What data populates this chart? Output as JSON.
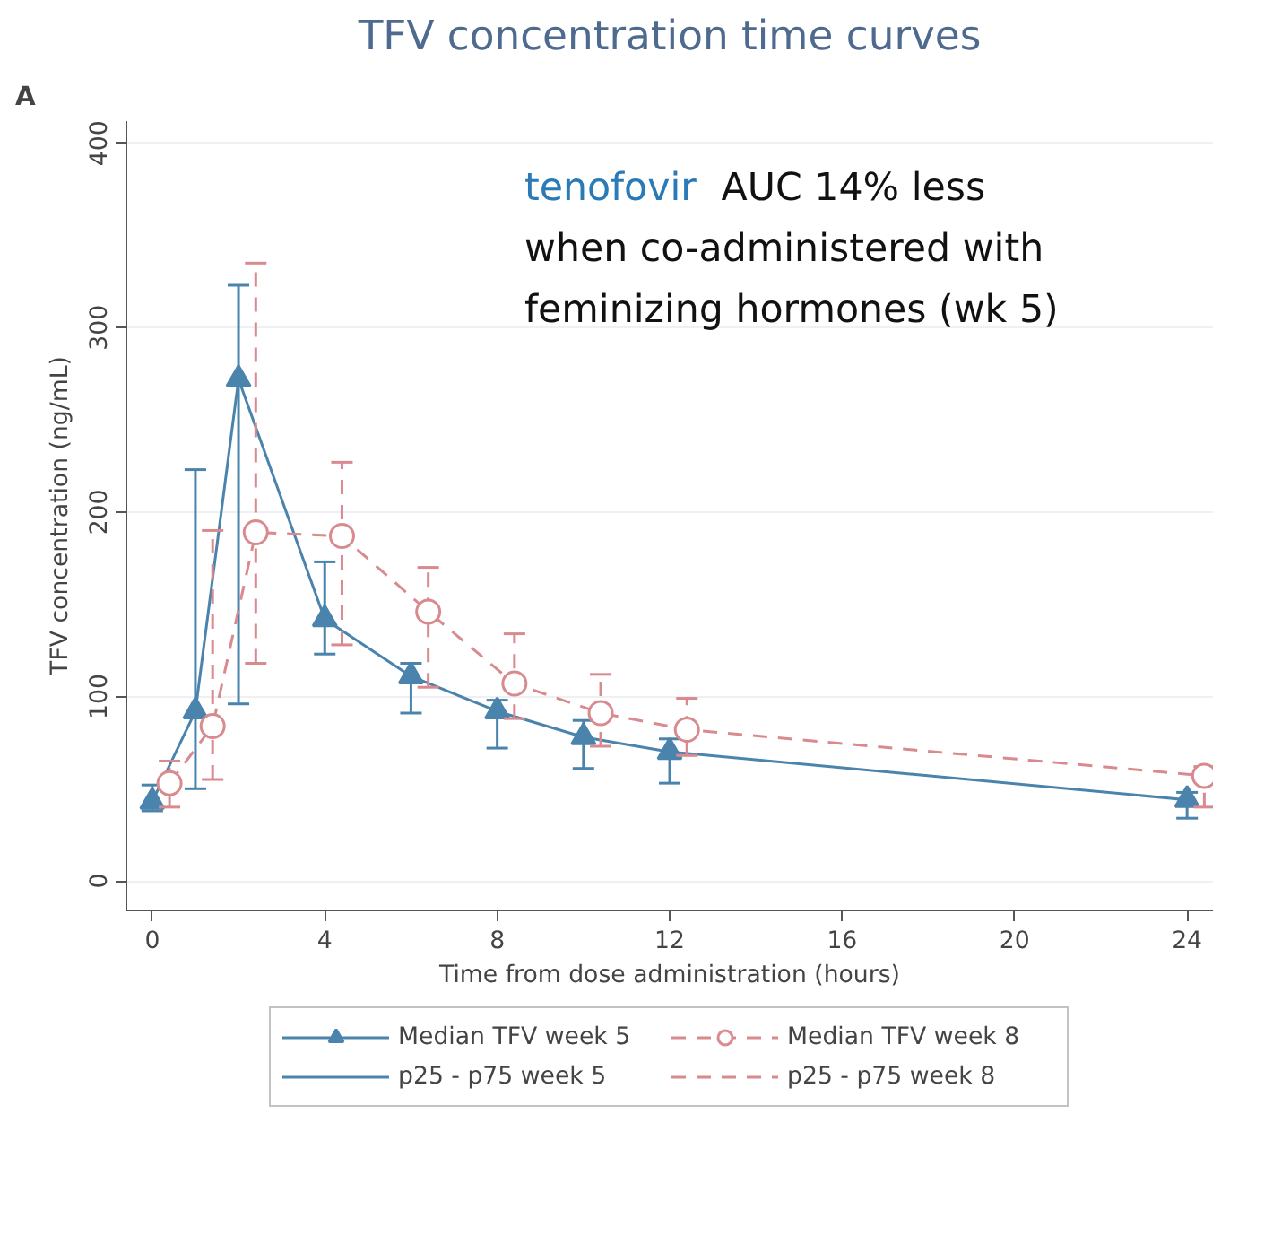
{
  "chart_data": {
    "type": "line",
    "title": "TFV concentration time curves",
    "xlabel": "Time from dose administration (hours)",
    "ylabel": "TFV concentration (ng/mL)",
    "annotations": [
      "A",
      "tenofovir AUC 14% less\nwhen co-administered with\nfeminizing hormones (wk 5)",
      "p25 - p75 week 5",
      "p25 - p75 week 8"
    ],
    "xlim": [
      -0.6,
      24.6
    ],
    "ylim": [
      -16,
      412
    ],
    "xticks": [
      0,
      4,
      8,
      12,
      16,
      20,
      24
    ],
    "yticks": [
      0,
      100,
      200,
      300,
      400
    ],
    "grid": "y",
    "legend": "bottom",
    "series": [
      {
        "name": "Median TFV week 5",
        "color": "#4a84ad",
        "marker": "triangle",
        "line_style": "solid",
        "x": [
          0,
          1,
          2,
          4,
          6,
          8,
          10,
          12,
          24
        ],
        "values": [
          43,
          92,
          272,
          142,
          111,
          92,
          78,
          70,
          44
        ],
        "errors": [
          [
            38,
            52
          ],
          [
            50,
            223
          ],
          [
            96,
            323
          ],
          [
            123,
            173
          ],
          [
            91,
            118
          ],
          [
            72,
            98
          ],
          [
            61,
            87
          ],
          [
            53,
            77
          ],
          [
            34,
            48
          ]
        ]
      },
      {
        "name": "Median TFV week 8",
        "color": "#d98a8f",
        "marker": "circle",
        "line_style": "dashed",
        "x": [
          0.4,
          1.4,
          2.4,
          4.4,
          6.4,
          8.4,
          10.4,
          12.4,
          24.4
        ],
        "values": [
          53,
          84,
          189,
          187,
          146,
          107,
          91,
          82,
          57
        ],
        "errors": [
          [
            40,
            65
          ],
          [
            55,
            190
          ],
          [
            118,
            335
          ],
          [
            128,
            227
          ],
          [
            105,
            170
          ],
          [
            88,
            134
          ],
          [
            73,
            112
          ],
          [
            68,
            99
          ],
          [
            40,
            62
          ]
        ]
      }
    ]
  }
}
